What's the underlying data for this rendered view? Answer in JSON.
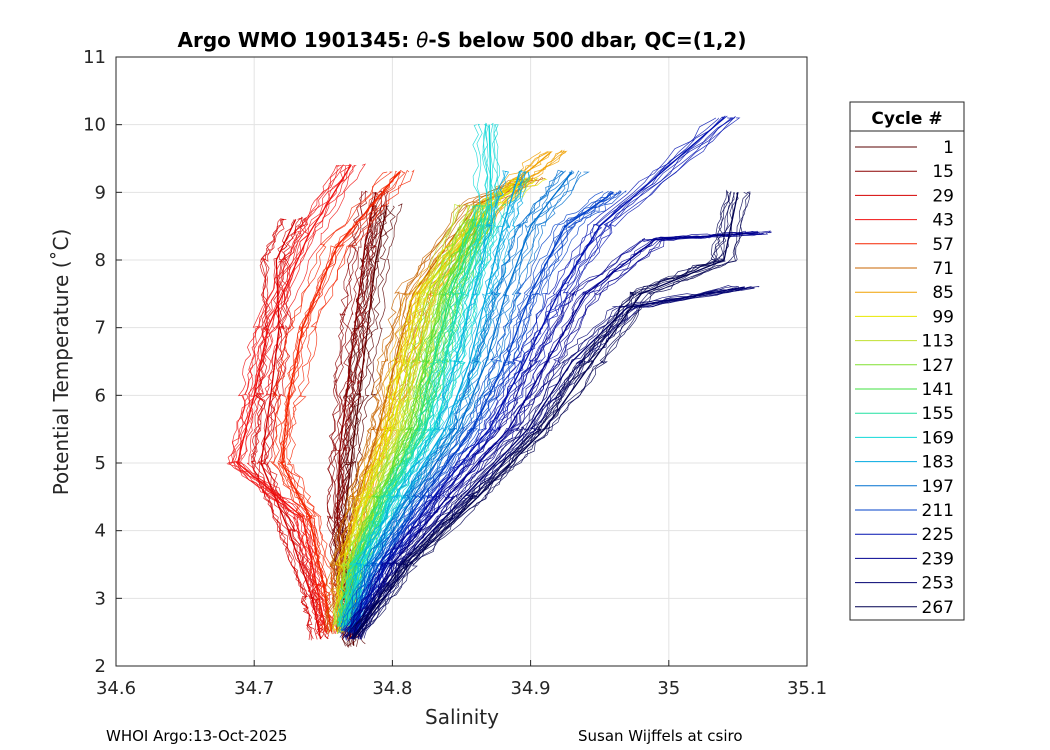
{
  "chart_data": {
    "type": "line",
    "title_prefix": "Argo WMO 1901345: ",
    "title_symbol": "θ",
    "title_suffix": "-S below 500 dbar,  QC=(1,2)",
    "xlabel": "Salinity",
    "ylabel": "Potential Temperature (˚C)",
    "xlim": [
      34.6,
      35.1
    ],
    "ylim": [
      2,
      11
    ],
    "xticks": [
      "34.6",
      "34.7",
      "34.8",
      "34.9",
      "35",
      "35.1"
    ],
    "yticks": [
      "2",
      "3",
      "4",
      "5",
      "6",
      "7",
      "8",
      "9",
      "10",
      "11"
    ],
    "grid": true,
    "legend_title": "Cycle #",
    "legend_position": "outside-right",
    "series": [
      {
        "name": "1",
        "color": "#5a0000",
        "points": [
          [
            34.772,
            2.3
          ],
          [
            34.768,
            3.0
          ],
          [
            34.764,
            4.0
          ],
          [
            34.77,
            5.0
          ],
          [
            34.776,
            6.0
          ],
          [
            34.782,
            7.0
          ],
          [
            34.788,
            8.0
          ],
          [
            34.796,
            8.8
          ]
        ]
      },
      {
        "name": "15",
        "color": "#8c0000",
        "points": [
          [
            34.77,
            2.4
          ],
          [
            34.765,
            3.2
          ],
          [
            34.76,
            4.2
          ],
          [
            34.762,
            5.2
          ],
          [
            34.768,
            6.2
          ],
          [
            34.774,
            7.2
          ],
          [
            34.78,
            8.2
          ],
          [
            34.788,
            9.0
          ]
        ]
      },
      {
        "name": "29",
        "color": "#d40000",
        "points": [
          [
            34.748,
            2.4
          ],
          [
            34.742,
            3.0
          ],
          [
            34.725,
            4.0
          ],
          [
            34.705,
            5.0
          ],
          [
            34.712,
            6.0
          ],
          [
            34.718,
            7.0
          ],
          [
            34.716,
            8.0
          ],
          [
            34.73,
            8.6
          ]
        ]
      },
      {
        "name": "43",
        "color": "#f01010",
        "points": [
          [
            34.752,
            2.5
          ],
          [
            34.745,
            3.2
          ],
          [
            34.735,
            4.2
          ],
          [
            34.688,
            5.0
          ],
          [
            34.7,
            6.0
          ],
          [
            34.71,
            7.0
          ],
          [
            34.74,
            8.4
          ],
          [
            34.77,
            9.4
          ]
        ]
      },
      {
        "name": "57",
        "color": "#f52500",
        "points": [
          [
            34.756,
            2.5
          ],
          [
            34.75,
            3.2
          ],
          [
            34.74,
            4.2
          ],
          [
            34.72,
            5.0
          ],
          [
            34.725,
            6.0
          ],
          [
            34.735,
            7.0
          ],
          [
            34.76,
            8.2
          ],
          [
            34.805,
            9.3
          ]
        ]
      },
      {
        "name": "71",
        "color": "#c86400",
        "points": [
          [
            34.76,
            2.5
          ],
          [
            34.762,
            3.5
          ],
          [
            34.775,
            4.5
          ],
          [
            34.79,
            5.5
          ],
          [
            34.802,
            6.5
          ],
          [
            34.815,
            7.5
          ],
          [
            34.86,
            8.8
          ],
          [
            34.9,
            9.2
          ]
        ]
      },
      {
        "name": "85",
        "color": "#f0a000",
        "points": [
          [
            34.762,
            2.5
          ],
          [
            34.765,
            3.5
          ],
          [
            34.778,
            4.5
          ],
          [
            34.795,
            5.5
          ],
          [
            34.808,
            6.5
          ],
          [
            34.82,
            7.5
          ],
          [
            34.88,
            9.0
          ],
          [
            34.915,
            9.6
          ]
        ]
      },
      {
        "name": "99",
        "color": "#e8e800",
        "points": [
          [
            34.764,
            2.5
          ],
          [
            34.768,
            3.5
          ],
          [
            34.782,
            4.5
          ],
          [
            34.8,
            5.5
          ],
          [
            34.812,
            6.5
          ],
          [
            34.825,
            7.5
          ],
          [
            34.87,
            8.8
          ],
          [
            34.9,
            9.2
          ]
        ]
      },
      {
        "name": "113",
        "color": "#c0e030",
        "points": [
          [
            34.764,
            2.6
          ],
          [
            34.77,
            3.5
          ],
          [
            34.786,
            4.5
          ],
          [
            34.806,
            5.5
          ],
          [
            34.818,
            6.5
          ],
          [
            34.83,
            7.5
          ],
          [
            34.856,
            8.8
          ]
        ]
      },
      {
        "name": "127",
        "color": "#80e030",
        "points": [
          [
            34.764,
            2.6
          ],
          [
            34.772,
            3.5
          ],
          [
            34.79,
            4.5
          ],
          [
            34.812,
            5.5
          ],
          [
            34.824,
            6.5
          ],
          [
            34.836,
            7.5
          ],
          [
            34.86,
            8.6
          ]
        ]
      },
      {
        "name": "141",
        "color": "#40e040",
        "points": [
          [
            34.765,
            2.6
          ],
          [
            34.774,
            3.5
          ],
          [
            34.794,
            4.5
          ],
          [
            34.818,
            5.5
          ],
          [
            34.83,
            6.5
          ],
          [
            34.842,
            7.5
          ],
          [
            34.864,
            8.6
          ]
        ]
      },
      {
        "name": "155",
        "color": "#20e0a0",
        "points": [
          [
            34.766,
            2.6
          ],
          [
            34.776,
            3.5
          ],
          [
            34.798,
            4.5
          ],
          [
            34.824,
            5.5
          ],
          [
            34.838,
            6.5
          ],
          [
            34.85,
            7.5
          ],
          [
            34.87,
            8.8
          ]
        ]
      },
      {
        "name": "169",
        "color": "#10d8d8",
        "points": [
          [
            34.767,
            2.6
          ],
          [
            34.778,
            3.5
          ],
          [
            34.802,
            4.5
          ],
          [
            34.83,
            5.5
          ],
          [
            34.846,
            6.5
          ],
          [
            34.858,
            7.5
          ],
          [
            34.872,
            8.5
          ],
          [
            34.87,
            10.0
          ]
        ]
      },
      {
        "name": "183",
        "color": "#00a8e0",
        "points": [
          [
            34.768,
            2.5
          ],
          [
            34.782,
            3.5
          ],
          [
            34.808,
            4.5
          ],
          [
            34.838,
            5.5
          ],
          [
            34.856,
            6.5
          ],
          [
            34.868,
            7.5
          ],
          [
            34.88,
            8.5
          ],
          [
            34.892,
            9.3
          ]
        ]
      },
      {
        "name": "197",
        "color": "#0070d0",
        "points": [
          [
            34.768,
            2.5
          ],
          [
            34.786,
            3.5
          ],
          [
            34.815,
            4.5
          ],
          [
            34.848,
            5.5
          ],
          [
            34.868,
            6.5
          ],
          [
            34.882,
            7.5
          ],
          [
            34.9,
            8.5
          ],
          [
            34.93,
            9.3
          ]
        ]
      },
      {
        "name": "211",
        "color": "#0040c8",
        "points": [
          [
            34.769,
            2.5
          ],
          [
            34.79,
            3.5
          ],
          [
            34.822,
            4.5
          ],
          [
            34.858,
            5.5
          ],
          [
            34.882,
            6.5
          ],
          [
            34.9,
            7.5
          ],
          [
            34.925,
            8.5
          ],
          [
            34.96,
            9.0
          ]
        ]
      },
      {
        "name": "225",
        "color": "#0010b0",
        "points": [
          [
            34.77,
            2.5
          ],
          [
            34.795,
            3.5
          ],
          [
            34.83,
            4.5
          ],
          [
            34.87,
            5.5
          ],
          [
            34.896,
            6.5
          ],
          [
            34.92,
            7.5
          ],
          [
            34.95,
            8.5
          ],
          [
            35.04,
            10.1
          ]
        ]
      },
      {
        "name": "239",
        "color": "#000090",
        "points": [
          [
            34.77,
            2.4
          ],
          [
            34.8,
            3.5
          ],
          [
            34.84,
            4.5
          ],
          [
            34.884,
            5.5
          ],
          [
            34.912,
            6.5
          ],
          [
            34.94,
            7.5
          ],
          [
            34.99,
            8.3
          ],
          [
            35.065,
            8.4
          ]
        ]
      },
      {
        "name": "253",
        "color": "#000070",
        "points": [
          [
            34.771,
            2.4
          ],
          [
            34.806,
            3.5
          ],
          [
            34.852,
            4.5
          ],
          [
            34.898,
            5.5
          ],
          [
            34.93,
            6.5
          ],
          [
            34.97,
            7.3
          ],
          [
            35.055,
            7.6
          ]
        ]
      },
      {
        "name": "267",
        "color": "#000050",
        "points": [
          [
            34.772,
            2.4
          ],
          [
            34.812,
            3.5
          ],
          [
            34.862,
            4.5
          ],
          [
            34.91,
            5.5
          ],
          [
            34.945,
            6.5
          ],
          [
            34.98,
            7.5
          ],
          [
            35.04,
            8.0
          ],
          [
            35.05,
            9.0
          ]
        ]
      }
    ]
  },
  "footer": {
    "left": "WHOI Argo:13-Oct-2025",
    "right": "Susan Wijffels at csiro"
  }
}
